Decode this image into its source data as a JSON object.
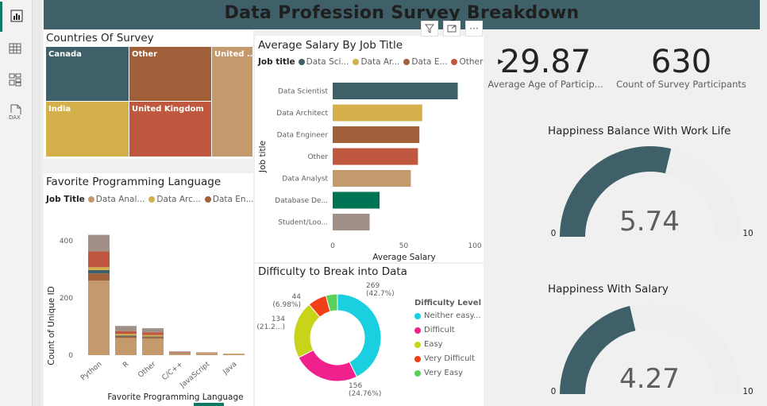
{
  "page": {
    "title": "Data Profession Survey Breakdown"
  },
  "nav": {
    "items": [
      {
        "name": "report-view",
        "icon": "bar-chart-icon"
      },
      {
        "name": "table-view",
        "icon": "table-grid-icon"
      },
      {
        "name": "model-view",
        "icon": "model-icon"
      },
      {
        "name": "dax-query-view",
        "icon": "dax-icon",
        "label": "DAX"
      }
    ]
  },
  "visual_header": {
    "filter_icon": "filter-icon",
    "focus_icon": "focus-mode-icon",
    "more_label": "···"
  },
  "treemap": {
    "title": "Countries Of Survey",
    "tiles": [
      {
        "label": "Canada",
        "color": "#3f6068"
      },
      {
        "label": "Other",
        "color": "#a0603a"
      },
      {
        "label": "United ...",
        "color": "#c49a6c"
      },
      {
        "label": "India",
        "color": "#d4b04a"
      },
      {
        "label": "United Kingdom",
        "color": "#c05840"
      }
    ]
  },
  "lang_chart": {
    "title": "Favorite Programming Language",
    "legend_title": "Job Title",
    "legend": [
      {
        "label": "Data Anal...",
        "color": "#c49a6c"
      },
      {
        "label": "Data Arc...",
        "color": "#d4b04a"
      },
      {
        "label": "Data En...",
        "color": "#a0603a"
      }
    ]
  },
  "salary_chart": {
    "title": "Average Salary By Job Title",
    "legend_title": "Job title",
    "legend": [
      {
        "label": "Data Sci...",
        "color": "#3f6068"
      },
      {
        "label": "Data Ar...",
        "color": "#d4b04a"
      },
      {
        "label": "Data E...",
        "color": "#a0603a"
      },
      {
        "label": "Other",
        "color": "#c05840"
      }
    ]
  },
  "donut_chart": {
    "title": "Difficulty to Break into Data",
    "legend_title": "Difficulty Level"
  },
  "kpis": [
    {
      "value": "29.87",
      "label": "Average Age of Particip..."
    },
    {
      "value": "630",
      "label": "Count of Survey Participants"
    }
  ],
  "gauges": [
    {
      "title": "Happiness Balance With Work Life",
      "value": 5.74,
      "value_label": "5.74",
      "min_label": "0",
      "max_label": "10"
    },
    {
      "title": "Happiness With Salary",
      "value": 4.27,
      "value_label": "4.27",
      "min_label": "0",
      "max_label": "10"
    }
  ],
  "chart_data": [
    {
      "type": "bar",
      "orientation": "vertical",
      "stacked": true,
      "title": "Favorite Programming Language",
      "xlabel": "Favorite Programming Language",
      "ylabel": "Count of Unique ID",
      "categories": [
        "Python",
        "R",
        "Other",
        "C/C++",
        "JavaScript",
        "Java"
      ],
      "ylim": [
        0,
        430
      ],
      "yticks": [
        0,
        200,
        400
      ],
      "segments": [
        {
          "values": [
            260,
            60,
            58,
            6,
            5,
            3
          ],
          "color": "#c49a6c"
        },
        {
          "values": [
            25,
            5,
            5,
            1,
            1,
            0
          ],
          "color": "#a0603a"
        },
        {
          "values": [
            12,
            3,
            2,
            1,
            0,
            0
          ],
          "color": "#3f6068"
        },
        {
          "values": [
            10,
            6,
            5,
            1,
            1,
            1
          ],
          "color": "#d4b04a"
        },
        {
          "values": [
            55,
            10,
            10,
            2,
            1,
            1
          ],
          "color": "#c05840"
        },
        {
          "values": [
            58,
            18,
            14,
            2,
            2,
            0
          ],
          "color": "#a09088"
        }
      ]
    },
    {
      "type": "bar",
      "orientation": "horizontal",
      "title": "Average Salary By Job Title",
      "xlabel": "Average Salary",
      "ylabel": "Job title",
      "categories": [
        "Data Scientist",
        "Data Architect",
        "Data Engineer",
        "Other",
        "Data Analyst",
        "Database De...",
        "Student/Loo..."
      ],
      "values": [
        88,
        63,
        61,
        60,
        55,
        33,
        26
      ],
      "colors": [
        "#3f6068",
        "#d4b04a",
        "#a0603a",
        "#c05840",
        "#c49a6c",
        "#007355",
        "#a09088"
      ],
      "xlim": [
        0,
        100
      ],
      "xticks": [
        0,
        50,
        100
      ]
    },
    {
      "type": "pie",
      "donut": true,
      "title": "Difficulty to Break into Data",
      "slices": [
        {
          "label": "Neither easy...",
          "value": 269,
          "display": "269",
          "pct": "(42.7%)",
          "color": "#1ad0e0"
        },
        {
          "label": "Difficult",
          "value": 156,
          "display": "156",
          "pct": "(24.76%)",
          "color": "#f0208c"
        },
        {
          "label": "Easy",
          "value": 134,
          "display": "134",
          "pct": "(21.2...)",
          "color": "#c8d41a"
        },
        {
          "label": "Very Difficult",
          "value": 44,
          "display": "44",
          "pct": "(6.98%)",
          "color": "#f04018"
        },
        {
          "label": "Very Easy",
          "value": 27,
          "display": "",
          "pct": "",
          "color": "#5ad05a"
        }
      ]
    }
  ]
}
